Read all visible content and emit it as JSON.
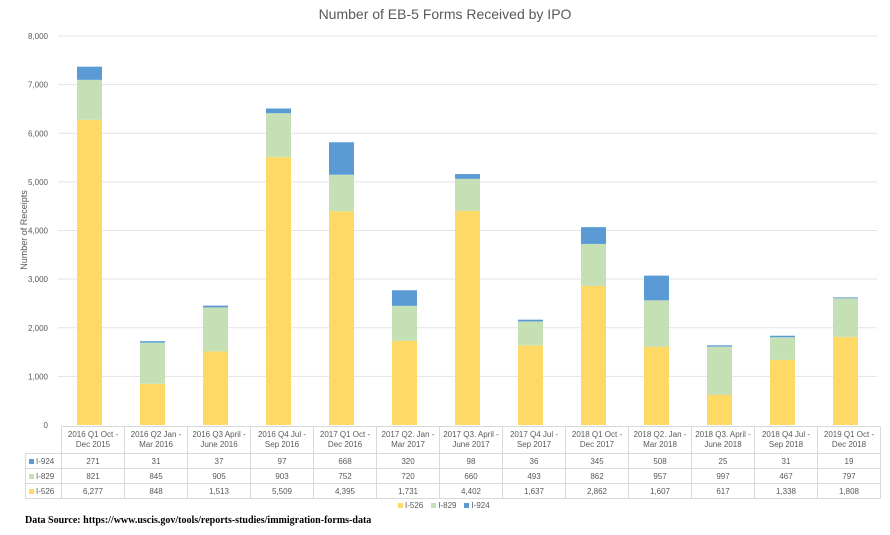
{
  "chart_data": {
    "type": "bar",
    "stacked": true,
    "title": "Number of EB-5 Forms Received by IPO",
    "ylabel": "Number of Receipts",
    "xlabel": "",
    "ylim": [
      0,
      8000
    ],
    "yticks": [
      "0",
      "1,000",
      "2,000",
      "3,000",
      "4,000",
      "5,000",
      "6,000",
      "7,000",
      "8,000"
    ],
    "ytick_values": [
      0,
      1000,
      2000,
      3000,
      4000,
      5000,
      6000,
      7000,
      8000
    ],
    "grid": true,
    "legend": "bottom",
    "categories": [
      "2016 Q1 Oct - Dec 2015",
      "2016 Q2 Jan - Mar 2016",
      "2016 Q3 April - June 2016",
      "2016 Q4 Jul - Sep 2016",
      "2017 Q1 Oct - Dec 2016",
      "2017 Q2. Jan - Mar 2017",
      "2017 Q3. April - June 2017",
      "2017 Q4 Jul - Sep 2017",
      "2018 Q1 Oct - Dec 2017",
      "2018 Q2. Jan - Mar 2018",
      "2018 Q3. April - June 2018",
      "2018 Q4 Jul - Sep 2018",
      "2019  Q1  Oct - Dec 2018"
    ],
    "category_lines": [
      [
        "2016 Q1 Oct -",
        "Dec 2015"
      ],
      [
        "2016 Q2 Jan -",
        "Mar 2016"
      ],
      [
        "2016 Q3 April -",
        "June 2016"
      ],
      [
        "2016 Q4 Jul -",
        "Sep 2016"
      ],
      [
        "2017 Q1 Oct -",
        "Dec 2016"
      ],
      [
        "2017 Q2. Jan -",
        "Mar 2017"
      ],
      [
        "2017 Q3. April -",
        "June 2017"
      ],
      [
        "2017 Q4 Jul -",
        "Sep 2017"
      ],
      [
        "2018 Q1 Oct -",
        "Dec 2017"
      ],
      [
        "2018 Q2. Jan -",
        "Mar 2018"
      ],
      [
        "2018 Q3. April -",
        "June 2018"
      ],
      [
        "2018 Q4 Jul -",
        "Sep 2018"
      ],
      [
        "2019  Q1  Oct -",
        "Dec 2018"
      ]
    ],
    "series": [
      {
        "name": "I-526",
        "color": "#ffd966",
        "values": [
          6277,
          848,
          1513,
          5509,
          4395,
          1731,
          4402,
          1637,
          2862,
          1607,
          617,
          1338,
          1808
        ],
        "labels": [
          "6,277",
          "848",
          "1,513",
          "5,509",
          "4,395",
          "1,731",
          "4,402",
          "1,637",
          "2,862",
          "1,607",
          "617",
          "1,338",
          "1,808"
        ]
      },
      {
        "name": "I-829",
        "color": "#c5e0b4",
        "values": [
          821,
          845,
          905,
          903,
          752,
          720,
          660,
          493,
          862,
          957,
          997,
          467,
          797
        ],
        "labels": [
          "821",
          "845",
          "905",
          "903",
          "752",
          "720",
          "660",
          "493",
          "862",
          "957",
          "997",
          "467",
          "797"
        ]
      },
      {
        "name": "I-924",
        "color": "#5b9bd5",
        "values": [
          271,
          31,
          37,
          97,
          668,
          320,
          98,
          36,
          345,
          508,
          25,
          31,
          19
        ],
        "labels": [
          "271",
          "31",
          "37",
          "97",
          "668",
          "320",
          "98",
          "36",
          "345",
          "508",
          "25",
          "31",
          "19"
        ]
      }
    ],
    "table_row_order": [
      "I-924",
      "I-829",
      "I-526"
    ]
  },
  "source": "Data Source: https://www.uscis.gov/tools/reports-studies/immigration-forms-data"
}
